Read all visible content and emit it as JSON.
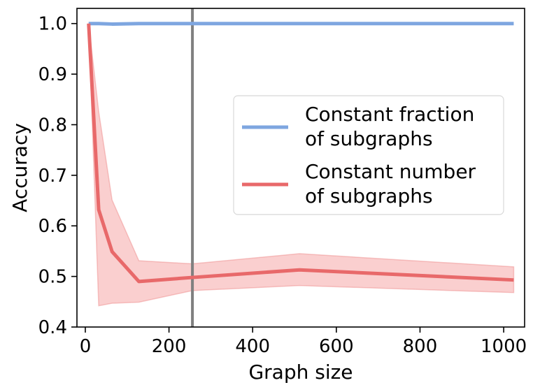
{
  "chart_data": {
    "type": "line",
    "title": "",
    "xlabel": "Graph size",
    "ylabel": "Accuracy",
    "xlim": [
      -20,
      1050
    ],
    "ylim": [
      0.4,
      1.03
    ],
    "xticks": [
      0,
      200,
      400,
      600,
      800,
      1000
    ],
    "yticks": [
      0.4,
      0.5,
      0.6,
      0.7,
      0.8,
      0.9,
      1.0
    ],
    "xtick_labels": [
      "0",
      "200",
      "400",
      "600",
      "800",
      "1000"
    ],
    "ytick_labels": [
      "0.4",
      "0.5",
      "0.6",
      "0.7",
      "0.8",
      "0.9",
      "1.0"
    ],
    "vline_x": 256,
    "vline_color": "#808080",
    "grid": false,
    "legend_position": "center-right",
    "series": [
      {
        "name": "Constant fraction of subgraphs",
        "legend_lines": [
          "Constant fraction",
          "of subgraphs"
        ],
        "color": "#7ea6e0",
        "x": [
          8,
          16,
          32,
          64,
          128,
          256,
          512,
          1024
        ],
        "y": [
          1.0,
          1.0,
          1.0,
          0.999,
          1.0,
          1.0,
          1.0,
          1.0
        ]
      },
      {
        "name": "Constant number of subgraphs",
        "legend_lines": [
          "Constant number",
          "of subgraphs"
        ],
        "color": "#e8696a",
        "band_color": "#f7b5b5",
        "x": [
          8,
          32,
          64,
          128,
          256,
          512,
          1024
        ],
        "y": [
          1.0,
          0.632,
          0.549,
          0.49,
          0.498,
          0.513,
          0.493
        ],
        "y_lower": [
          1.0,
          0.442,
          0.447,
          0.449,
          0.472,
          0.482,
          0.468
        ],
        "y_upper": [
          1.0,
          0.826,
          0.651,
          0.531,
          0.525,
          0.545,
          0.519
        ]
      }
    ]
  }
}
